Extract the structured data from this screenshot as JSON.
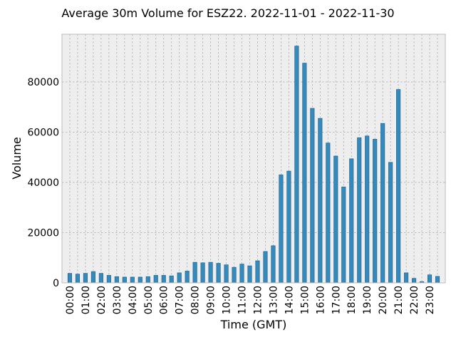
{
  "chart_data": {
    "type": "bar",
    "title": "Average 30m Volume for ESZ22. 2022-11-01 - 2022-11-30",
    "xlabel": "Time (GMT)",
    "ylabel": "Volume",
    "ylim": [
      0,
      99000
    ],
    "yticks": [
      0,
      20000,
      40000,
      60000,
      80000
    ],
    "ytick_labels": [
      "0",
      "20000",
      "40000",
      "60000",
      "80000"
    ],
    "grid": true,
    "color": "#348abd",
    "categories": [
      "00:00",
      "00:30",
      "01:00",
      "01:30",
      "02:00",
      "02:30",
      "03:00",
      "03:30",
      "04:00",
      "04:30",
      "05:00",
      "05:30",
      "06:00",
      "06:30",
      "07:00",
      "07:30",
      "08:00",
      "08:30",
      "09:00",
      "09:30",
      "10:00",
      "10:30",
      "11:00",
      "11:30",
      "12:00",
      "12:30",
      "13:00",
      "13:30",
      "14:00",
      "14:30",
      "15:00",
      "15:30",
      "16:00",
      "16:30",
      "17:00",
      "17:30",
      "18:00",
      "18:30",
      "19:00",
      "19:30",
      "20:00",
      "20:30",
      "21:00",
      "21:30",
      "22:00",
      "22:30",
      "23:00",
      "23:30"
    ],
    "xtick_labels": [
      "00:00",
      "01:00",
      "02:00",
      "03:00",
      "04:00",
      "05:00",
      "06:00",
      "07:00",
      "08:00",
      "09:00",
      "10:00",
      "11:00",
      "12:00",
      "13:00",
      "14:00",
      "15:00",
      "16:00",
      "17:00",
      "18:00",
      "19:00",
      "20:00",
      "21:00",
      "22:00",
      "23:00"
    ],
    "values": [
      3800,
      3500,
      3800,
      4500,
      3800,
      3000,
      2500,
      2300,
      2300,
      2300,
      2500,
      3000,
      3000,
      2800,
      4000,
      4700,
      8200,
      8000,
      8200,
      7800,
      7200,
      6200,
      7500,
      6800,
      8800,
      12500,
      14800,
      43000,
      44500,
      94300,
      87500,
      69500,
      65500,
      55700,
      50500,
      38200,
      49400,
      57800,
      58500,
      57200,
      63500,
      48000,
      77000,
      4000,
      1800,
      500,
      3200,
      2600
    ]
  }
}
